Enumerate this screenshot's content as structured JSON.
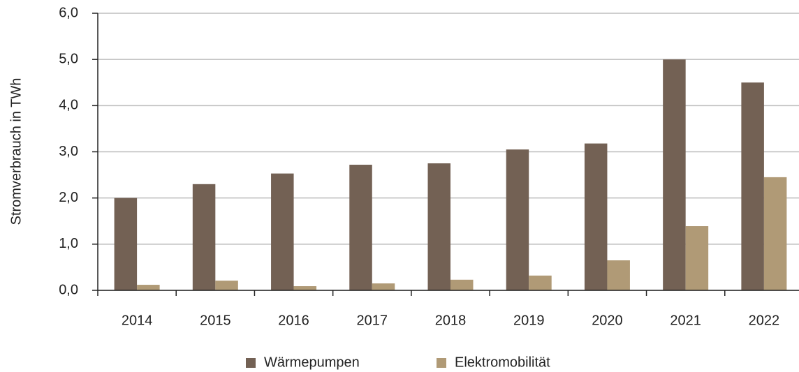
{
  "chart_data": {
    "type": "bar",
    "y_label": "Stromverbrauch in TWh",
    "categories": [
      "2014",
      "2015",
      "2016",
      "2017",
      "2018",
      "2019",
      "2020",
      "2021",
      "2022"
    ],
    "series": [
      {
        "name": "Wärmepumpen",
        "color": "#736154",
        "values": [
          2.0,
          2.3,
          2.53,
          2.72,
          2.75,
          3.05,
          3.18,
          5.0,
          4.5
        ]
      },
      {
        "name": "Elektromobilität",
        "color": "#b09a76",
        "values": [
          0.12,
          0.21,
          0.09,
          0.15,
          0.23,
          0.32,
          0.65,
          1.39,
          2.45
        ]
      }
    ],
    "ylim": [
      0,
      6
    ],
    "yticks": [
      {
        "value": 0,
        "label": "0,0"
      },
      {
        "value": 1,
        "label": "1,0"
      },
      {
        "value": 2,
        "label": "2,0"
      },
      {
        "value": 3,
        "label": "3,0"
      },
      {
        "value": 4,
        "label": "4,0"
      },
      {
        "value": 5,
        "label": "5,0"
      },
      {
        "value": 6,
        "label": "6,0"
      }
    ],
    "grid": true,
    "legend": "bottom"
  }
}
